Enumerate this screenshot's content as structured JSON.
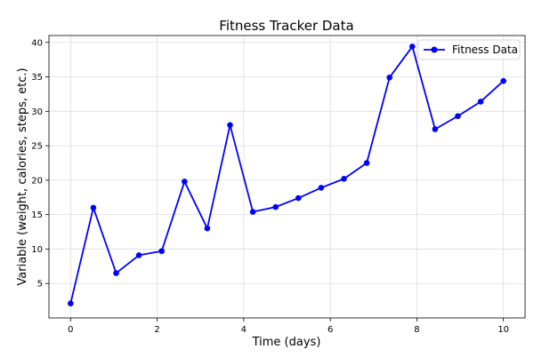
{
  "chart_data": {
    "type": "line",
    "title": "Fitness Tracker Data",
    "xlabel": "Time (days)",
    "ylabel": "Variable (weight, calories, steps, etc.)",
    "xlim": [
      -0.5,
      10.5
    ],
    "ylim": [
      0,
      41
    ],
    "xticks": [
      0,
      2,
      4,
      6,
      8,
      10
    ],
    "yticks": [
      5,
      10,
      15,
      20,
      25,
      30,
      35,
      40
    ],
    "grid": true,
    "legend_position": "top-right",
    "series": [
      {
        "name": "Fitness Data",
        "color": "#0000ff",
        "x": [
          0,
          0.526,
          1.053,
          1.579,
          2.105,
          2.632,
          3.158,
          3.684,
          4.211,
          4.737,
          5.263,
          5.789,
          6.316,
          6.842,
          7.368,
          7.895,
          8.421,
          8.947,
          9.474,
          10
        ],
        "y": [
          2.1,
          16.0,
          6.5,
          9.1,
          9.7,
          19.8,
          13.0,
          28.0,
          15.4,
          16.1,
          17.4,
          18.9,
          20.2,
          22.5,
          34.9,
          39.4,
          27.4,
          29.3,
          31.4,
          34.4
        ]
      }
    ]
  }
}
